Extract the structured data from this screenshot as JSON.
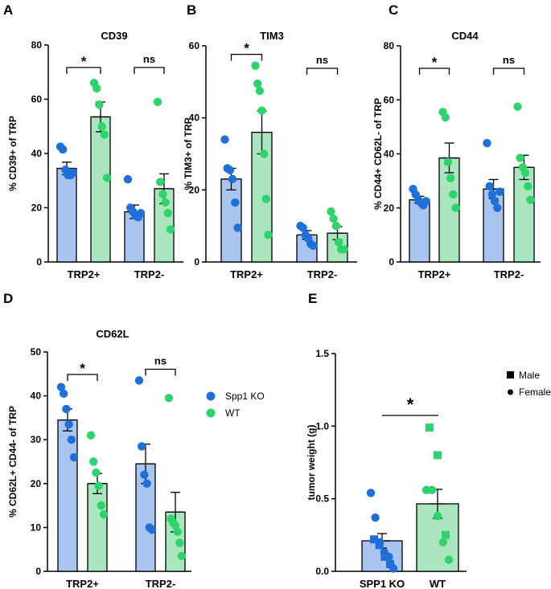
{
  "colors": {
    "ko": "#1f6fd9",
    "ko_bar": "#a9c4ee",
    "wt": "#2fd36b",
    "wt_bar": "#a9e6be",
    "line": "#000000"
  },
  "chart_data": [
    {
      "id": "A",
      "panel": "A",
      "type": "bar",
      "title": "CD39",
      "ylabel": "% CD39+ of TRP",
      "ylim": [
        0,
        80
      ],
      "yticks": [
        0,
        20,
        40,
        60,
        80
      ],
      "categories": [
        "TRP2+",
        "TRP2-"
      ],
      "series": [
        {
          "name": "Spp1 KO",
          "values": [
            34.5,
            18.5
          ],
          "errors": [
            2.3,
            2.5
          ],
          "points": [
            [
              42.5,
              41.5,
              34,
              32,
              32,
              33
            ],
            [
              30.5,
              20,
              18.5,
              17,
              16.5,
              18
            ]
          ]
        },
        {
          "name": "WT",
          "values": [
            53.5,
            27
          ],
          "errors": [
            5.5,
            5.5
          ],
          "points": [
            [
              66,
              64,
              58,
              50,
              47,
              31
            ],
            [
              59,
              29.5,
              25,
              22,
              18,
              12
            ]
          ]
        }
      ],
      "significance": [
        "*",
        "ns"
      ]
    },
    {
      "id": "B",
      "panel": "B",
      "type": "bar",
      "title": "TIM3",
      "ylabel": "% TIM3+ of TRP",
      "ylim": [
        0,
        60
      ],
      "yticks": [
        0,
        20,
        40,
        60
      ],
      "categories": [
        "TRP2+",
        "TRP2-"
      ],
      "series": [
        {
          "name": "Spp1 KO",
          "values": [
            23,
            7.5
          ],
          "errors": [
            3,
            1.2
          ],
          "points": [
            [
              34,
              26,
              25.5,
              23,
              16.5,
              9.5
            ],
            [
              10,
              9.5,
              7.5,
              6.5,
              5,
              4.5
            ]
          ]
        },
        {
          "name": "WT",
          "values": [
            36,
            8
          ],
          "errors": [
            6,
            1.8
          ],
          "points": [
            [
              54.5,
              49.5,
              47.5,
              42,
              30,
              17.5,
              7.5
            ],
            [
              14,
              12,
              10,
              5.5,
              3.5,
              3.5
            ]
          ]
        }
      ],
      "significance": [
        "*",
        "ns"
      ]
    },
    {
      "id": "C",
      "panel": "C",
      "type": "bar",
      "title": "CD44",
      "ylabel": "% CD44+ CD62L- of TRP",
      "ylim": [
        0,
        80
      ],
      "yticks": [
        0,
        20,
        40,
        60,
        80
      ],
      "categories": [
        "TRP2+",
        "TRP2-"
      ],
      "series": [
        {
          "name": "Spp1 KO",
          "values": [
            23,
            27
          ],
          "errors": [
            1.3,
            3.5
          ],
          "points": [
            [
              27,
              25,
              23,
              22,
              21,
              22.5
            ],
            [
              44,
              28,
              25,
              22.5,
              20,
              26
            ]
          ]
        },
        {
          "name": "WT",
          "values": [
            38.5,
            35
          ],
          "errors": [
            5.5,
            4.5
          ],
          "points": [
            [
              55.5,
              53.5,
              37,
              31,
              25,
              20
            ],
            [
              57.5,
              38.5,
              35,
              33,
              28,
              23
            ]
          ]
        }
      ],
      "significance": [
        "*",
        "ns"
      ]
    },
    {
      "id": "D",
      "panel": "D",
      "type": "bar",
      "title": "CD62L",
      "ylabel": "% CD62L+ CD44- of TRP",
      "ylim": [
        0,
        50
      ],
      "yticks": [
        0,
        10,
        20,
        30,
        40,
        50
      ],
      "categories": [
        "TRP2+",
        "TRP2-"
      ],
      "series": [
        {
          "name": "Spp1 KO",
          "values": [
            34.5,
            24.5
          ],
          "errors": [
            2.5,
            4.5
          ],
          "points": [
            [
              42,
              40.5,
              37,
              33.5,
              30,
              26
            ],
            [
              43.5,
              28.5,
              22,
              20,
              10,
              9.5
            ]
          ]
        },
        {
          "name": "WT",
          "values": [
            20,
            13.5
          ],
          "errors": [
            2.3,
            4.5
          ],
          "points": [
            [
              31,
              25,
              22.5,
              19.5,
              15,
              13
            ],
            [
              39.5,
              12,
              11,
              10.5,
              9,
              6.5,
              3.5
            ]
          ]
        }
      ],
      "significance": [
        "*",
        "ns"
      ],
      "legend": [
        "Spp1 KO",
        "WT"
      ]
    },
    {
      "id": "E",
      "panel": "E",
      "type": "bar",
      "title": "",
      "ylabel": "tumor weight (g)",
      "ylim": [
        0,
        1.5
      ],
      "yticks": [
        0.0,
        0.5,
        1.0,
        1.5
      ],
      "tick_labels": [
        "0.0",
        "0.5",
        "1.0",
        "1.5"
      ],
      "categories": [
        "SPP1 KO",
        "WT"
      ],
      "values": [
        0.21,
        0.465
      ],
      "errors": [
        0.05,
        0.1
      ],
      "points": [
        {
          "group": "SPP1 KO",
          "squares": [
            0.22,
            0.18,
            0.1,
            0.05
          ],
          "circles": [
            0.54,
            0.37,
            0.2,
            0.13,
            0.1,
            0.02
          ]
        },
        {
          "group": "WT",
          "squares": [
            0.99,
            0.8,
            0.25
          ],
          "circles": [
            0.56,
            0.56,
            0.38,
            0.2,
            0.08
          ]
        }
      ],
      "significance": [
        "*"
      ],
      "legend": [
        "Male",
        "Female"
      ]
    }
  ]
}
